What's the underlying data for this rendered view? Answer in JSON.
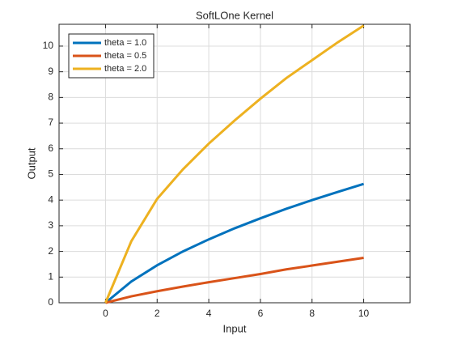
{
  "chart_data": {
    "type": "line",
    "title": "SoftLOne Kernel",
    "xlabel": "Input",
    "ylabel": "Output",
    "x": [
      0,
      1,
      2,
      3,
      4,
      5,
      6,
      7,
      8,
      9,
      10
    ],
    "series": [
      {
        "name": "theta = 1.0",
        "color": "#0072BD",
        "values": [
          0,
          0.83,
          1.46,
          2,
          2.47,
          2.9,
          3.29,
          3.66,
          4,
          4.32,
          4.63
        ]
      },
      {
        "name": "theta = 0.5",
        "color": "#D95319",
        "values": [
          0,
          0.25,
          0.45,
          0.63,
          0.8,
          0.96,
          1.12,
          1.3,
          1.45,
          1.6,
          1.75
        ]
      },
      {
        "name": "theta = 2.0",
        "color": "#EDB120",
        "values": [
          0,
          2.4,
          4.05,
          5.2,
          6.2,
          7.1,
          7.95,
          8.75,
          9.45,
          10.15,
          10.8
        ]
      }
    ],
    "xlim": [
      -1.8,
      11.8
    ],
    "ylim": [
      0,
      10.85
    ],
    "xticks": [
      0,
      2,
      4,
      6,
      8,
      10
    ],
    "yticks": [
      0,
      1,
      2,
      3,
      4,
      5,
      6,
      7,
      8,
      9,
      10
    ],
    "grid": true,
    "legend": "northwest"
  }
}
